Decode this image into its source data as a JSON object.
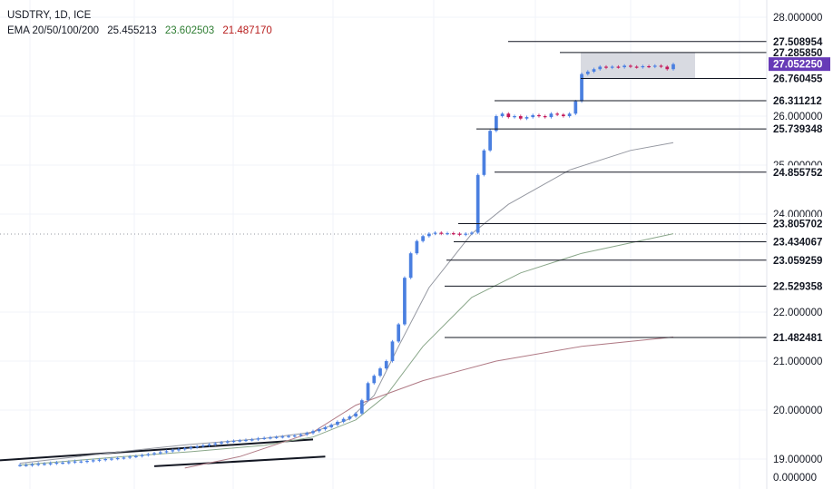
{
  "legend": {
    "symbol": "USDTRY, 1D, ICE",
    "ema_label": "EMA 20/50/100/200",
    "ema_values": [
      "25.455213",
      "23.602503",
      "21.487170"
    ],
    "ema_colors": [
      "#131722",
      "#2e7d32",
      "#b71c1c"
    ]
  },
  "chart_data": {
    "type": "candlestick",
    "title": "USDTRY, 1D, ICE",
    "y_tick_labels": [
      "28.000000",
      "26.000000",
      "25.000000",
      "24.000000",
      "22.000000",
      "21.000000",
      "20.000000",
      "19.000000",
      "0.000000"
    ],
    "price_levels": [
      27.508954,
      27.28585,
      27.05225,
      26.760455,
      26.311212,
      25.739348,
      24.855752,
      23.805702,
      23.434067,
      23.059259,
      22.529358,
      21.482481
    ],
    "price_level_labels": [
      "27.508954",
      "27.285850",
      "27.052250",
      "26.760455",
      "26.311212",
      "25.739348",
      "24.855752",
      "23.805702",
      "23.434067",
      "23.059259",
      "22.529358",
      "21.482481"
    ],
    "current_price": 27.05225,
    "current_price_label": "27.052250",
    "consolidation_zone": [
      26.760455,
      27.28585
    ],
    "close_series": [
      18.9,
      18.9,
      18.91,
      18.92,
      18.92,
      18.93,
      18.94,
      18.94,
      18.95,
      18.96,
      18.96,
      18.97,
      18.98,
      18.99,
      19.0,
      19.01,
      19.02,
      19.03,
      19.05,
      19.06,
      19.08,
      19.1,
      19.12,
      19.14,
      19.16,
      19.18,
      19.2,
      19.22,
      19.24,
      19.26,
      19.28,
      19.3,
      19.32,
      19.34,
      19.36,
      19.37,
      19.38,
      19.39,
      19.4,
      19.42,
      19.43,
      19.44,
      19.45,
      19.46,
      19.47,
      19.48,
      19.5,
      19.53,
      19.57,
      19.61,
      19.65,
      19.7,
      19.76,
      19.82,
      19.87,
      19.93,
      20.2,
      20.55,
      20.7,
      20.85,
      21.0,
      21.4,
      21.75,
      22.7,
      23.2,
      23.45,
      23.55,
      23.6,
      23.62,
      23.6,
      23.61,
      23.6,
      23.58,
      23.6,
      23.62,
      24.8,
      25.3,
      25.7,
      26.0,
      26.05,
      25.98,
      26.0,
      25.95,
      25.98,
      26.02,
      26.0,
      25.98,
      26.05,
      26.03,
      26.0,
      26.05,
      26.3,
      26.85,
      26.9,
      26.95,
      27.0,
      26.98,
      27.0,
      26.99,
      27.02,
      27.0,
      26.99,
      27.01,
      27.0,
      27.02,
      27.0,
      26.95,
      27.05
    ],
    "ema_20": [
      [
        18.93,
        0
      ],
      [
        19.17,
        18
      ],
      [
        19.3,
        28
      ],
      [
        19.42,
        40
      ],
      [
        19.55,
        48
      ],
      [
        19.82,
        54
      ],
      [
        20.3,
        58
      ],
      [
        21.3,
        62
      ],
      [
        22.5,
        67
      ],
      [
        23.6,
        74
      ],
      [
        24.2,
        80
      ],
      [
        24.9,
        90
      ],
      [
        25.3,
        100
      ],
      [
        25.46,
        107
      ]
    ],
    "ema_50": [
      [
        18.9,
        0
      ],
      [
        19.04,
        16
      ],
      [
        19.15,
        28
      ],
      [
        19.28,
        40
      ],
      [
        19.45,
        48
      ],
      [
        19.8,
        55
      ],
      [
        20.3,
        60
      ],
      [
        21.3,
        66
      ],
      [
        22.3,
        74
      ],
      [
        22.8,
        82
      ],
      [
        23.2,
        92
      ],
      [
        23.6,
        107
      ]
    ],
    "ema_100": [
      [
        18.85,
        27
      ],
      [
        19.05,
        36
      ],
      [
        19.55,
        48
      ],
      [
        20.1,
        55
      ],
      [
        20.6,
        66
      ],
      [
        21.0,
        78
      ],
      [
        21.3,
        92
      ],
      [
        21.49,
        107
      ]
    ],
    "trendlines": [
      {
        "from": [
          0,
          18.98
        ],
        "to": [
          48,
          19.4
        ]
      },
      {
        "from": [
          22,
          18.88
        ],
        "to": [
          50,
          19.05
        ]
      }
    ],
    "x_tick_labels": [],
    "grid": true
  }
}
